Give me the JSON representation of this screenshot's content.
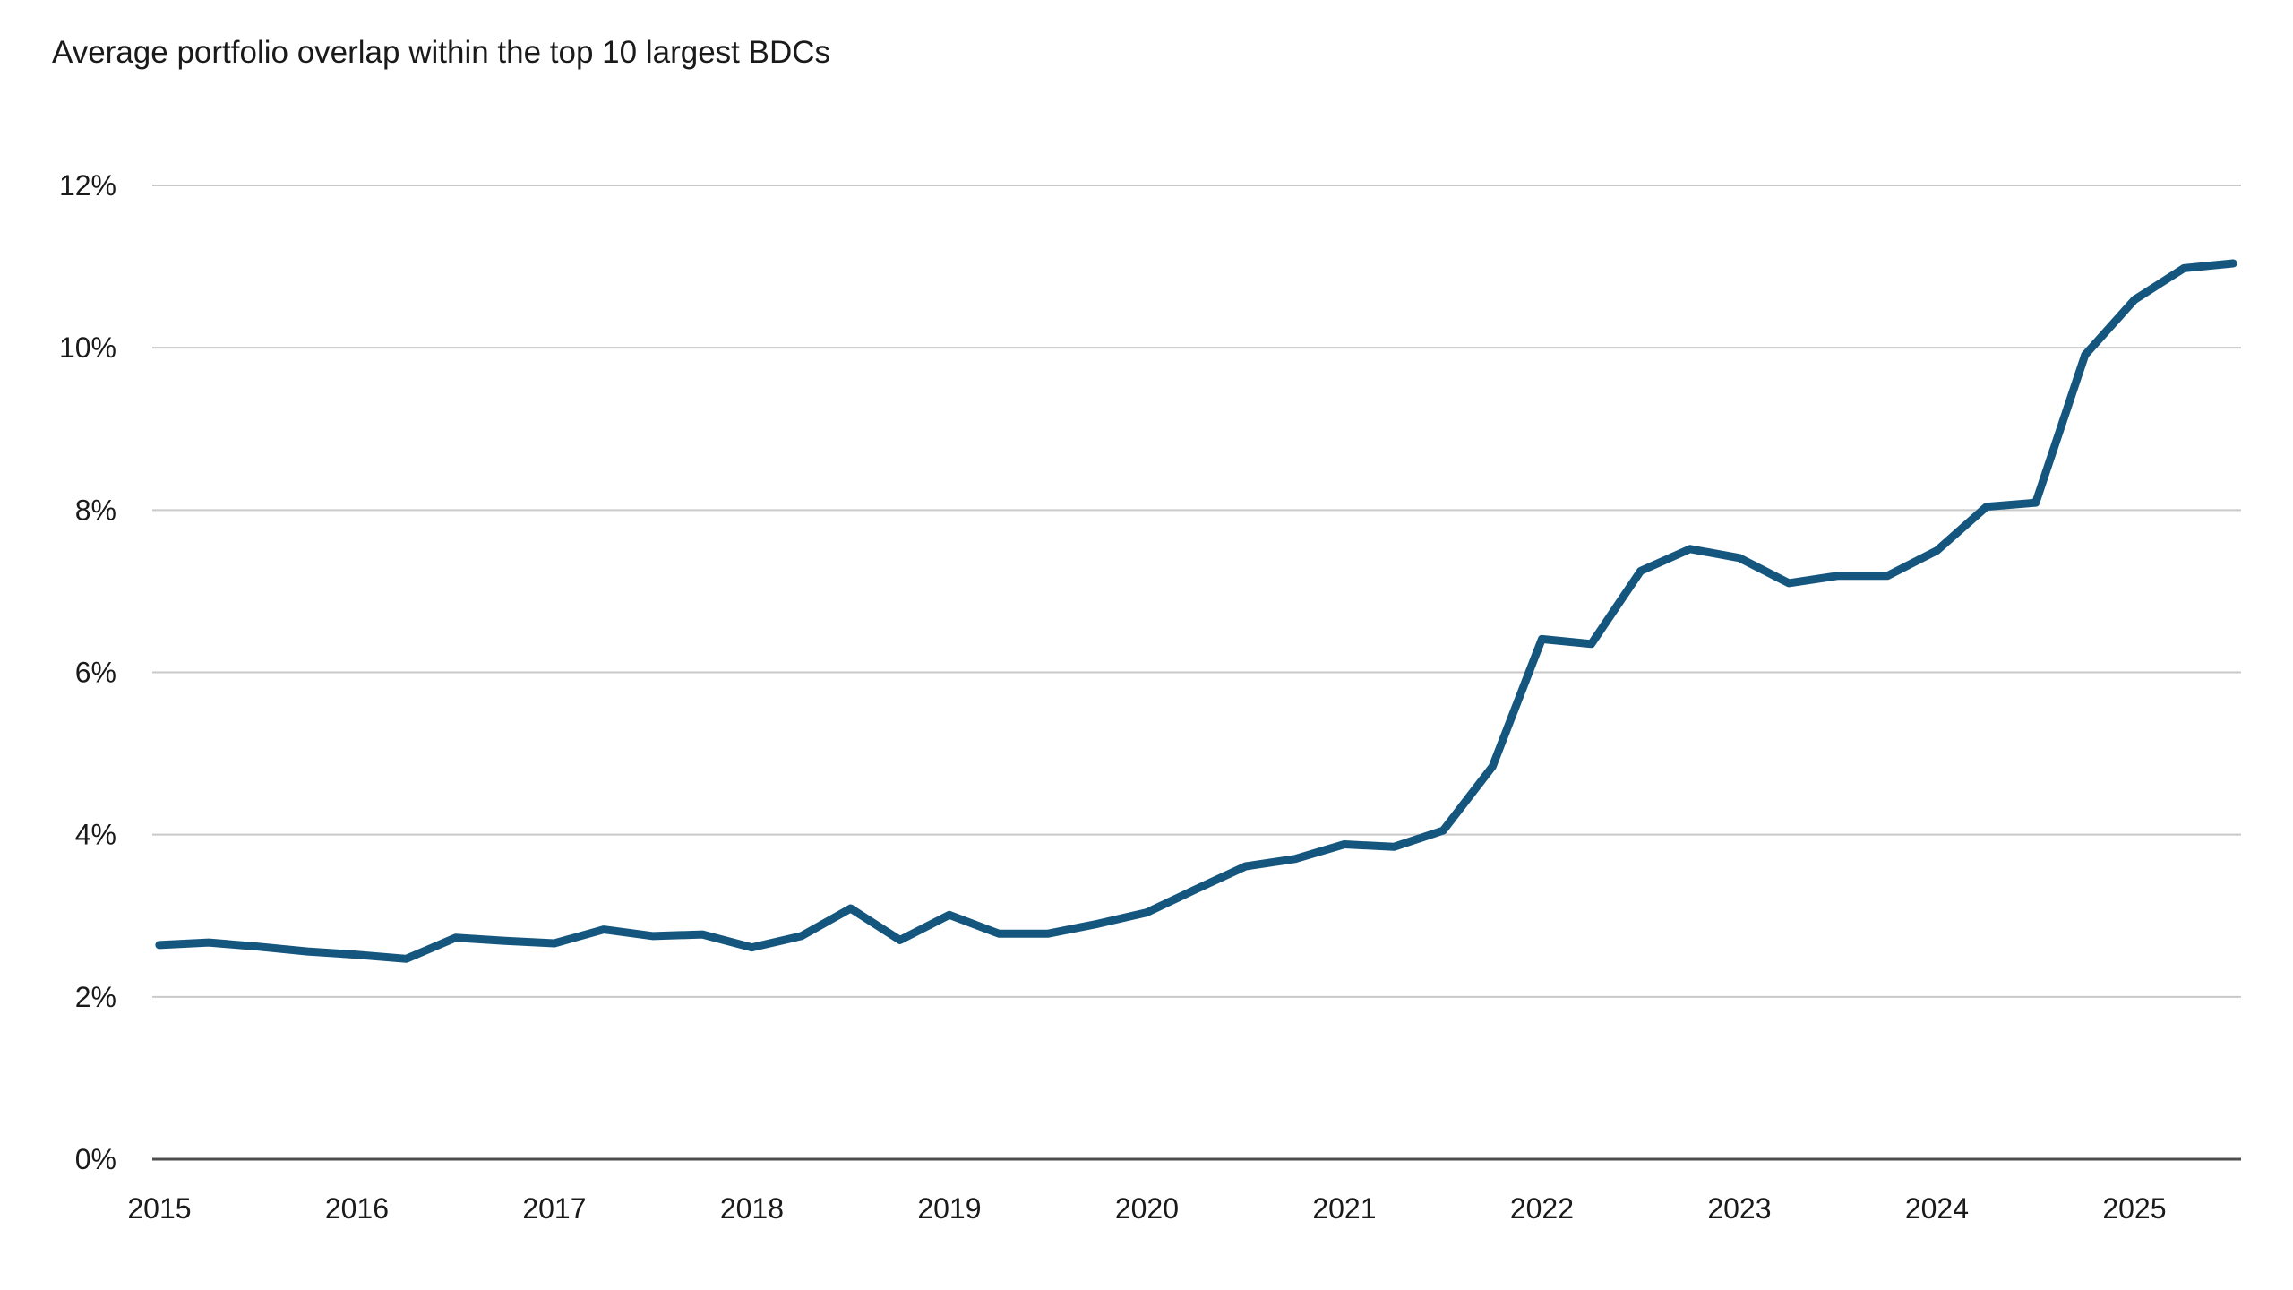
{
  "page": {
    "background": "#ffffff"
  },
  "chart_data": {
    "type": "line",
    "title": "Average portfolio overlap within the top 10 largest BDCs",
    "legend": "none",
    "grid": "horizontal",
    "x_axis": {
      "tick_labels": [
        "2015",
        "2016",
        "2017",
        "2018",
        "2019",
        "2020",
        "2021",
        "2022",
        "2023",
        "2024",
        "2025"
      ],
      "tick_positions": [
        2015,
        2016,
        2017,
        2018,
        2019,
        2020,
        2021,
        2022,
        2023,
        2024,
        2025
      ]
    },
    "y_axis": {
      "tick_labels": [
        "0%",
        "2%",
        "4%",
        "6%",
        "8%",
        "10%",
        "12%"
      ],
      "tick_values": [
        0,
        2,
        4,
        6,
        8,
        10,
        12
      ],
      "ylim": [
        0,
        12
      ],
      "unit": "%"
    },
    "xlim": [
      2014.964,
      2025.54
    ],
    "series": [
      {
        "name": "Average portfolio overlap",
        "color": "#15567F",
        "frequency": "quarterly",
        "x": [
          2015.0,
          2015.25,
          2015.5,
          2015.75,
          2016.0,
          2016.25,
          2016.5,
          2016.75,
          2017.0,
          2017.25,
          2017.5,
          2017.75,
          2018.0,
          2018.25,
          2018.5,
          2018.75,
          2019.0,
          2019.25,
          2019.5,
          2019.75,
          2020.0,
          2020.25,
          2020.5,
          2020.75,
          2021.0,
          2021.25,
          2021.5,
          2021.75,
          2022.0,
          2022.25,
          2022.5,
          2022.75,
          2023.0,
          2023.25,
          2023.5,
          2023.75,
          2024.0,
          2024.25,
          2024.5,
          2024.75,
          2025.0,
          2025.25,
          2025.5
        ],
        "values": [
          2.64,
          2.67,
          2.62,
          2.56,
          2.52,
          2.47,
          2.73,
          2.69,
          2.66,
          2.83,
          2.75,
          2.77,
          2.61,
          2.75,
          3.09,
          2.7,
          3.01,
          2.78,
          2.78,
          2.9,
          3.04,
          3.33,
          3.61,
          3.7,
          3.88,
          3.85,
          4.05,
          4.84,
          6.41,
          6.35,
          7.25,
          7.52,
          7.41,
          7.1,
          7.19,
          7.19,
          7.5,
          8.04,
          8.09,
          9.91,
          10.59,
          10.98,
          11.04
        ]
      }
    ],
    "colors": {
      "line": "#15567F",
      "gridline": "#c9c9c9",
      "axis_line": "#4d4d4d",
      "text": "#1a1a1a"
    }
  }
}
